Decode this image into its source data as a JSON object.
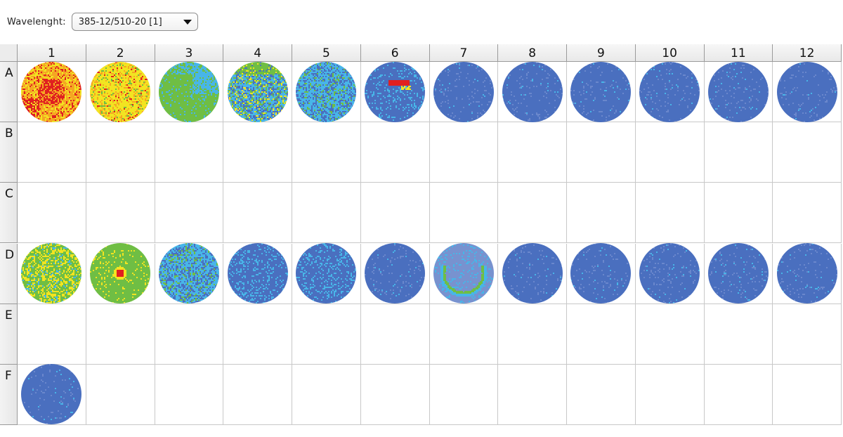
{
  "toolbar": {
    "wavelength_label": "Wavelenght:",
    "wavelength_value": "385-12/510-20 [1]",
    "dropdown_icon": "triangle-down-icon"
  },
  "plate": {
    "columns": [
      "1",
      "2",
      "3",
      "4",
      "5",
      "6",
      "7",
      "8",
      "9",
      "10",
      "11",
      "12"
    ],
    "rows": [
      "A",
      "B",
      "C",
      "D",
      "E",
      "F"
    ],
    "color_scale": [
      "#4a6fbf",
      "#48b5e8",
      "#6fbe44",
      "#f2e421",
      "#f5a623",
      "#e02020"
    ],
    "wells": [
      {
        "id": "A1",
        "base": "red-orange"
      },
      {
        "id": "A2",
        "base": "yellow"
      },
      {
        "id": "A3",
        "base": "green"
      },
      {
        "id": "A4",
        "base": "cyan-green"
      },
      {
        "id": "A5",
        "base": "cyan"
      },
      {
        "id": "A6",
        "base": "blue-hotspot"
      },
      {
        "id": "A7",
        "base": "blue"
      },
      {
        "id": "A8",
        "base": "blue"
      },
      {
        "id": "A9",
        "base": "blue"
      },
      {
        "id": "A10",
        "base": "blue"
      },
      {
        "id": "A11",
        "base": "blue"
      },
      {
        "id": "A12",
        "base": "blue"
      },
      {
        "id": "D1",
        "base": "green-yellow"
      },
      {
        "id": "D2",
        "base": "green-center"
      },
      {
        "id": "D3",
        "base": "cyan"
      },
      {
        "id": "D4",
        "base": "blue-noisy"
      },
      {
        "id": "D5",
        "base": "blue-noisy"
      },
      {
        "id": "D6",
        "base": "blue"
      },
      {
        "id": "D7",
        "base": "blue-ring"
      },
      {
        "id": "D8",
        "base": "blue"
      },
      {
        "id": "D9",
        "base": "blue"
      },
      {
        "id": "D10",
        "base": "blue"
      },
      {
        "id": "D11",
        "base": "blue"
      },
      {
        "id": "D12",
        "base": "blue"
      },
      {
        "id": "F1",
        "base": "blue"
      }
    ]
  }
}
